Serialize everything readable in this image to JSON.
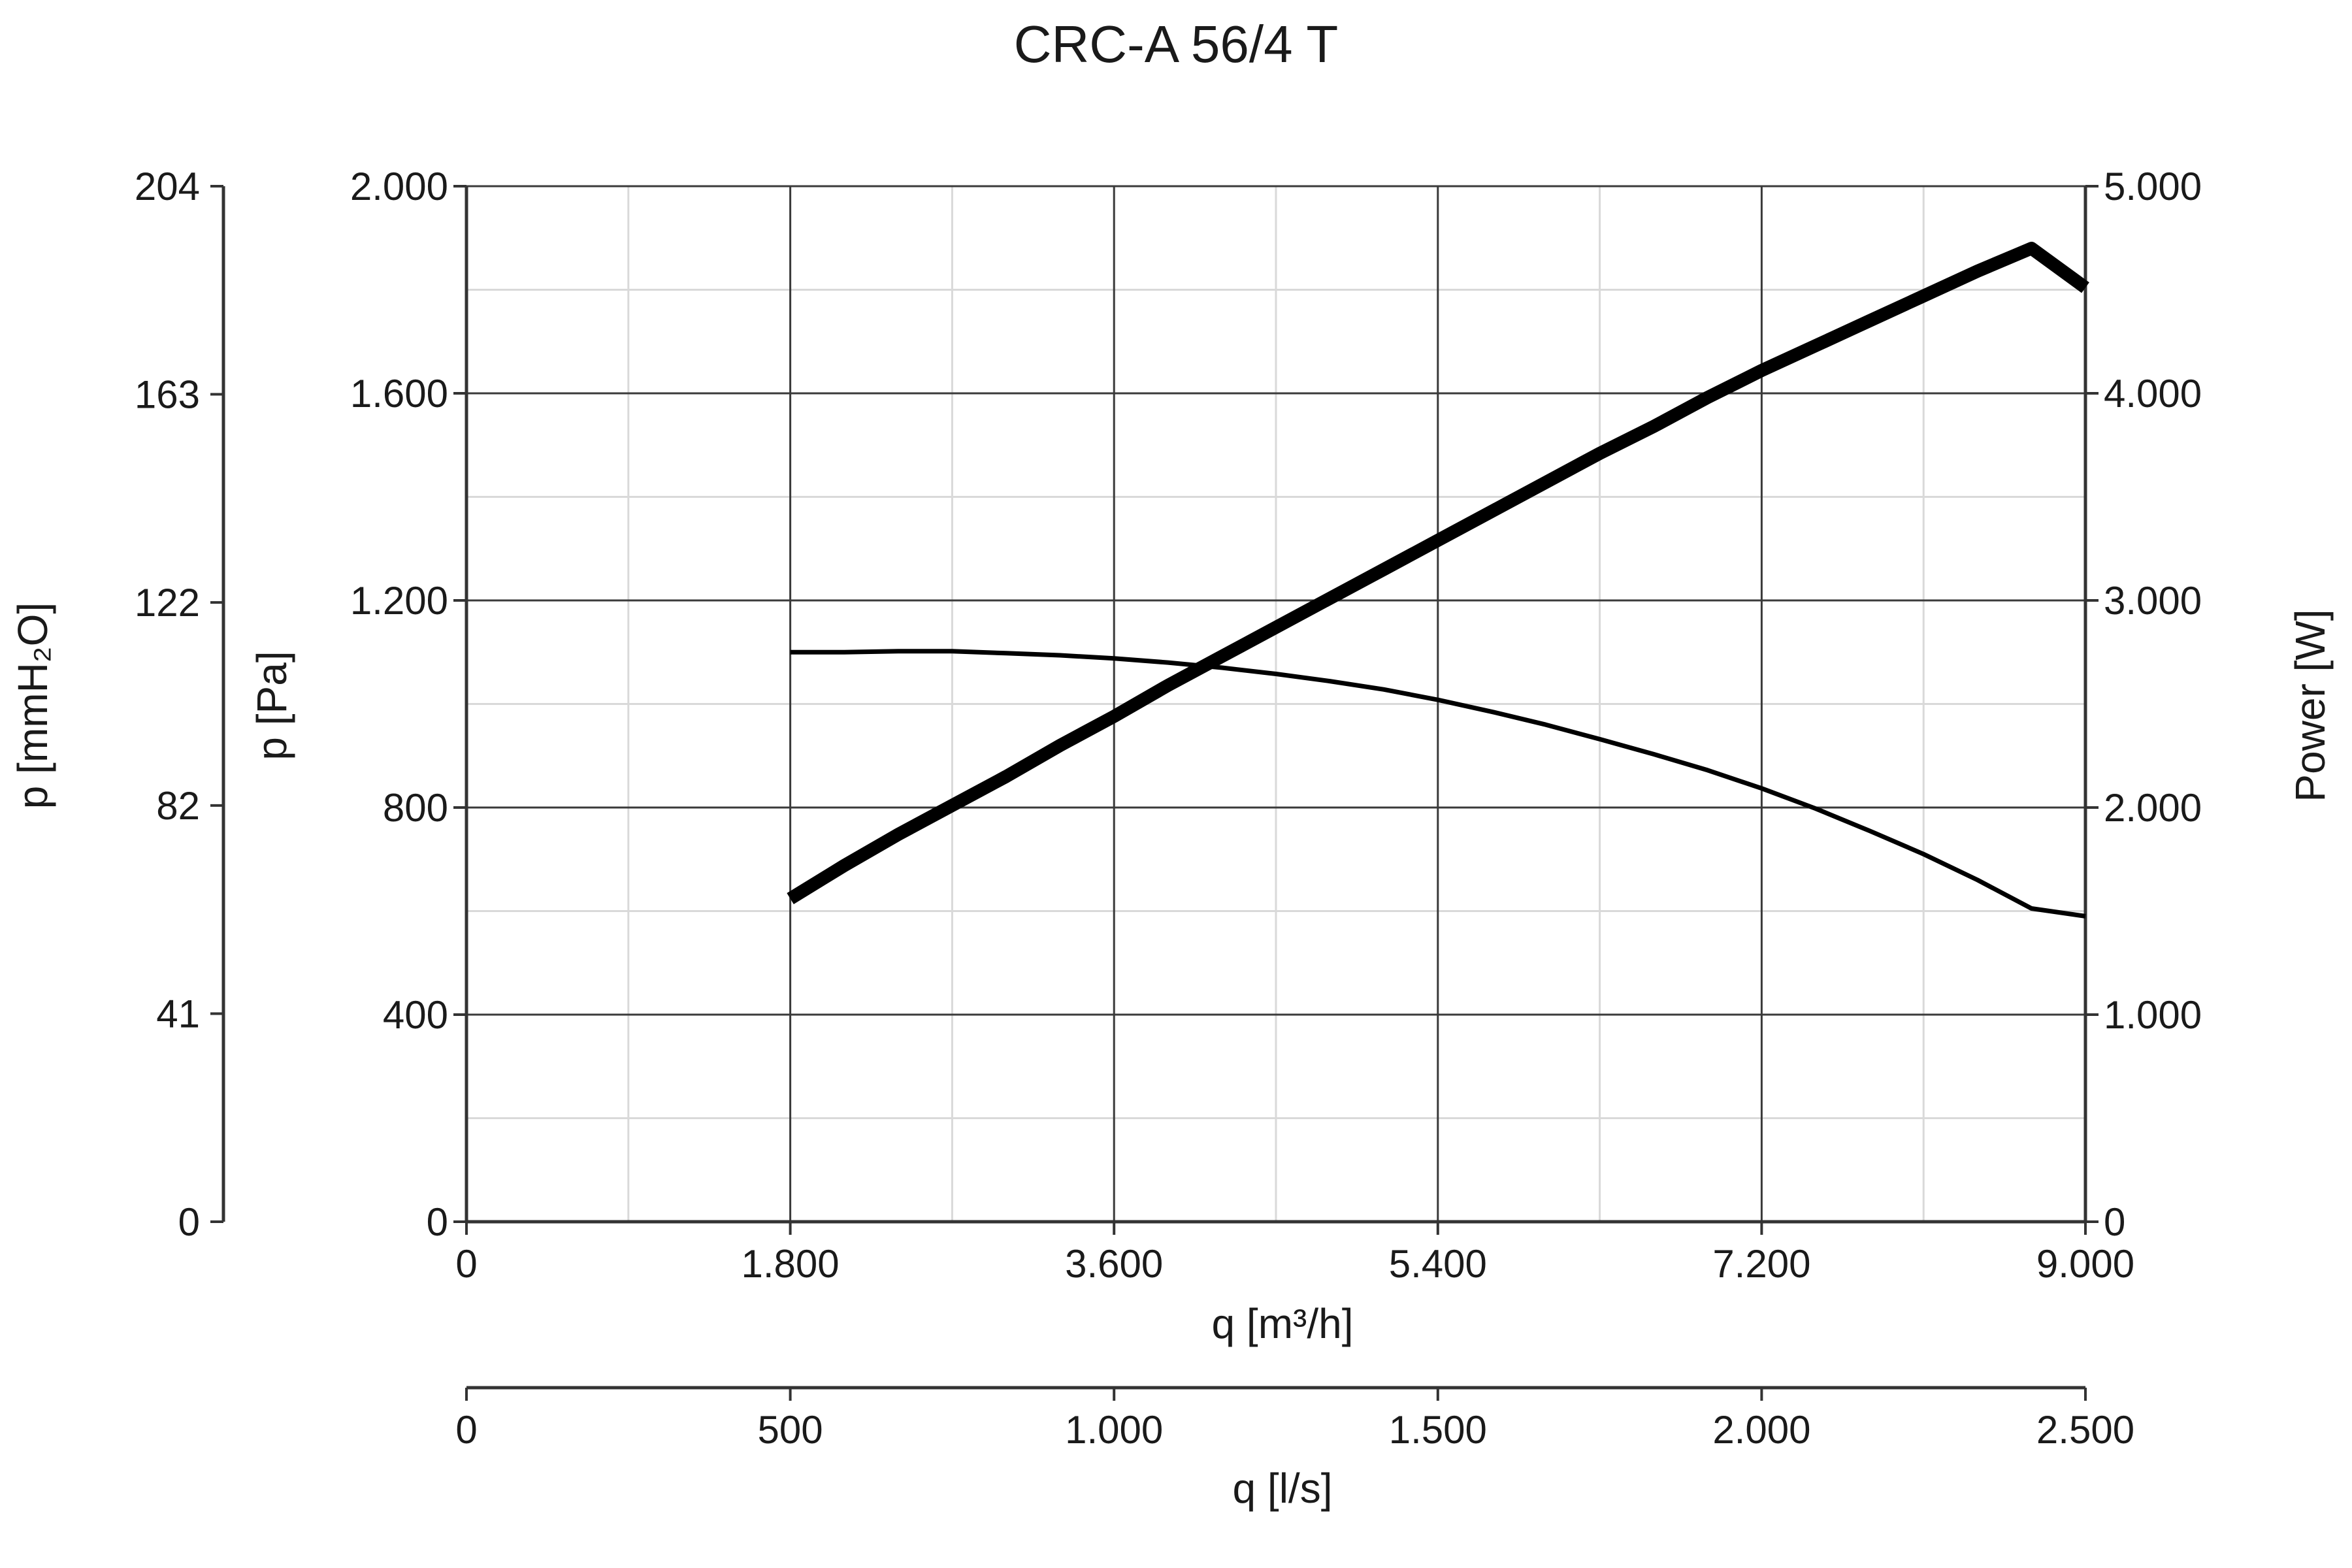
{
  "chart_data": {
    "type": "line",
    "title": "CRC-A 56/4 T",
    "x_axis": {
      "label": "q [m³/h]",
      "range": [
        0,
        9000
      ],
      "ticks": [
        0,
        1800,
        3600,
        5400,
        7200,
        9000
      ],
      "tick_labels": [
        "0",
        "1.800",
        "3.600",
        "5.400",
        "7.200",
        "9.000"
      ]
    },
    "x2_axis": {
      "label": "q [l/s]",
      "range": [
        0,
        2500
      ],
      "ticks": [
        0,
        500,
        1000,
        1500,
        2000,
        2500
      ],
      "tick_labels": [
        "0",
        "500",
        "1.000",
        "1.500",
        "2.000",
        "2.500"
      ]
    },
    "y_axis": {
      "label": "p [Pa]",
      "range": [
        0,
        2000
      ],
      "ticks": [
        0,
        400,
        800,
        1200,
        1600,
        2000
      ],
      "tick_labels": [
        "0",
        "400",
        "800",
        "1.200",
        "1.600",
        "2.000"
      ]
    },
    "y_axis_mmh2o": {
      "label": "p [mmH₂O]",
      "range": [
        0,
        204
      ],
      "ticks": [
        0,
        41,
        82,
        122,
        163,
        204
      ],
      "tick_labels": [
        "0",
        "41",
        "82",
        "122",
        "163",
        "204"
      ]
    },
    "y2_axis": {
      "label": "Power [W]",
      "range": [
        0,
        5000
      ],
      "ticks": [
        0,
        1000,
        2000,
        3000,
        4000,
        5000
      ],
      "tick_labels": [
        "0",
        "1.000",
        "2.000",
        "3.000",
        "4.000",
        "5.000"
      ]
    },
    "grid": true,
    "series": [
      {
        "axis": "y",
        "x": [
          1800,
          2100,
          2400,
          2700,
          3000,
          3300,
          3600,
          3900,
          4200,
          4500,
          4800,
          5100,
          5400,
          5700,
          6000,
          6300,
          6600,
          6900,
          7200,
          7500,
          7800,
          8100,
          8400,
          8700,
          9000
        ],
        "y": [
          1100,
          1100,
          1102,
          1102,
          1098,
          1094,
          1088,
          1080,
          1070,
          1058,
          1044,
          1028,
          1008,
          985,
          960,
          932,
          903,
          872,
          837,
          798,
          755,
          710,
          660,
          605,
          590
        ]
      },
      {
        "axis": "y2",
        "x": [
          1800,
          2100,
          2400,
          2700,
          3000,
          3300,
          3600,
          3900,
          4200,
          4500,
          4800,
          5100,
          5400,
          5700,
          6000,
          6300,
          6600,
          6900,
          7200,
          7500,
          7800,
          8100,
          8400,
          8700,
          9000
        ],
        "y": [
          1560,
          1720,
          1870,
          2010,
          2150,
          2300,
          2440,
          2590,
          2730,
          2870,
          3010,
          3150,
          3290,
          3430,
          3570,
          3710,
          3840,
          3980,
          4110,
          4230,
          4350,
          4470,
          4590,
          4700,
          4510
        ]
      }
    ]
  }
}
